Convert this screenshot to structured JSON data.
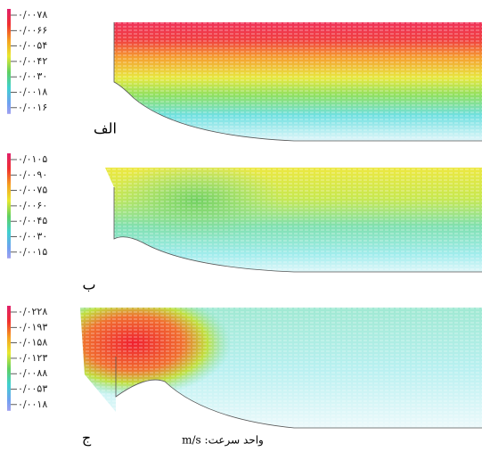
{
  "panels": [
    {
      "label": "الف",
      "colorbar_labels": [
        "۰/۰۰۷۸",
        "۰/۰۰۶۶",
        "۰/۰۰۵۴",
        "۰/۰۰۴۲",
        "۰/۰۰۳۰",
        "۰/۰۰۱۸",
        "۰/۰۰۱۶"
      ]
    },
    {
      "label": "ب",
      "colorbar_labels": [
        "۰/۰۱۰۵",
        "۰/۰۰۹۰",
        "۰/۰۰۷۵",
        "۰/۰۰۶۰",
        "۰/۰۰۴۵",
        "۰/۰۰۳۰",
        "۰/۰۰۱۵"
      ]
    },
    {
      "label": "ج",
      "colorbar_labels": [
        "۰/۰۲۲۸",
        "۰/۰۱۹۳",
        "۰/۰۱۵۸",
        "۰/۰۱۲۳",
        "۰/۰۰۸۸",
        "۰/۰۰۵۳",
        "۰/۰۰۱۸"
      ]
    }
  ],
  "caption": "واحد سرعت: m/s"
}
